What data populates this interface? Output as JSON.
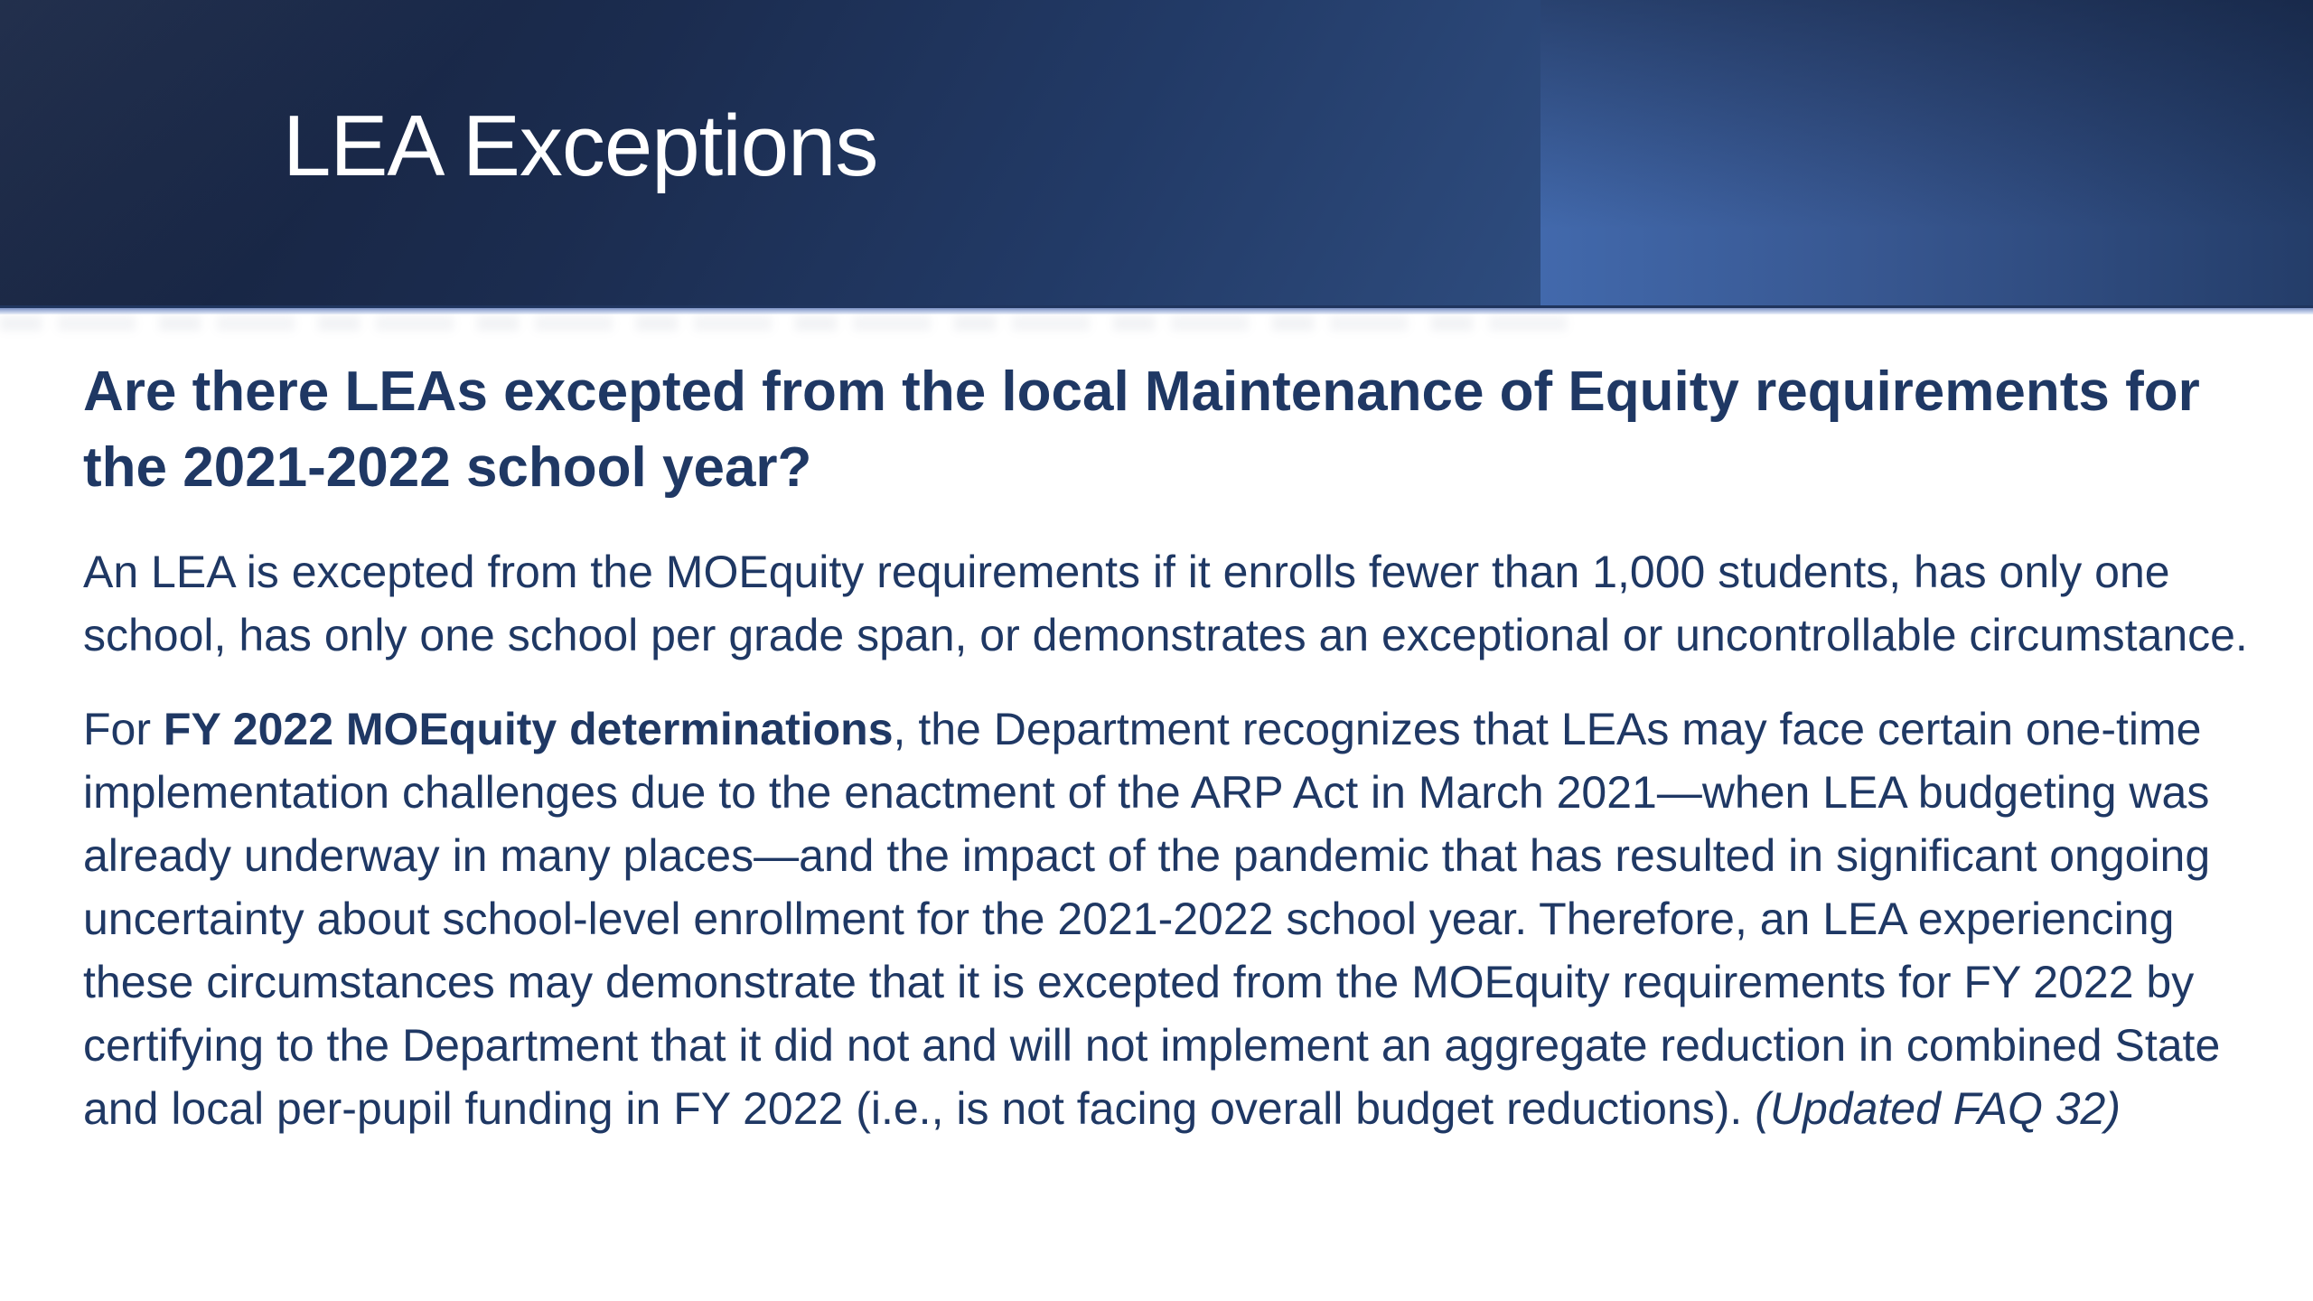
{
  "header": {
    "title": "LEA Exceptions"
  },
  "colors": {
    "banner_dark": "#15203a",
    "banner_mid": "#223a66",
    "banner_light": "#4269ac",
    "edge_line": "#c9d4ec",
    "text_navy": "#1f3864",
    "title_color": "#ffffff",
    "body_background": "#ffffff"
  },
  "main": {
    "question": "Are there LEAs excepted from the local Maintenance of Equity requirements for the 2021-2022 school year?",
    "paragraph1": "An LEA is excepted from the MOEquity requirements if it enrolls fewer than 1,000 students, has only one school, has only one school per grade span, or demonstrates an exceptional or uncontrollable circumstance.",
    "paragraph2": {
      "segments": [
        {
          "text": "For ",
          "bold": false,
          "italic": false
        },
        {
          "text": "FY 2022 MOEquity determinations",
          "bold": true,
          "italic": false
        },
        {
          "text": ", the Department recognizes that LEAs may face certain one-time implementation challenges due to the enactment of the ARP Act in March 2021—when LEA budgeting was already underway in many places—and the impact of the pandemic that has resulted in significant ongoing uncertainty about school-level enrollment for the 2021-2022 school year. Therefore, an LEA experiencing these circumstances may demonstrate that it is excepted from the MOEquity requirements for FY 2022 by certifying to the Department that it did not and will not implement an aggregate reduction in combined State and local per-pupil funding in FY 2022 (i.e., is not facing overall budget reductions). ",
          "bold": false,
          "italic": false
        },
        {
          "text": "(Updated FAQ 32)",
          "bold": false,
          "italic": true
        }
      ]
    }
  }
}
